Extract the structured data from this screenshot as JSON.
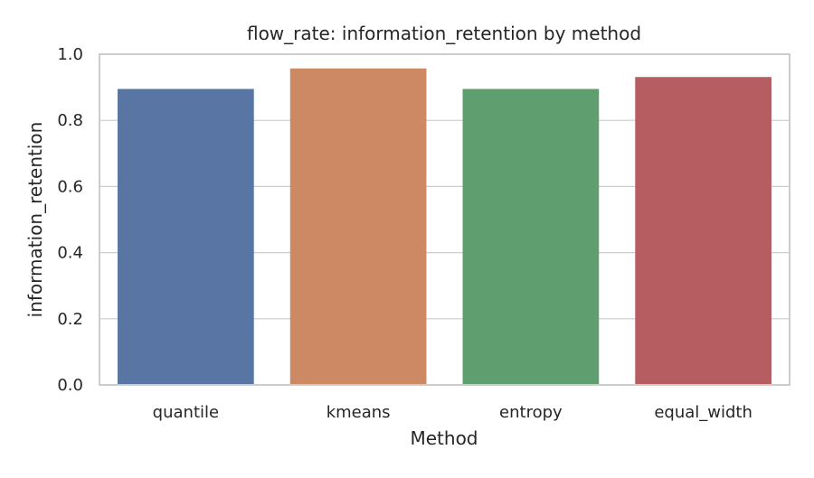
{
  "chart_data": {
    "type": "bar",
    "title": "flow_rate: information_retention by method",
    "xlabel": "Method",
    "ylabel": "information_retention",
    "categories": [
      "quantile",
      "kmeans",
      "entropy",
      "equal_width"
    ],
    "values": [
      0.895,
      0.957,
      0.895,
      0.931
    ],
    "ylim": [
      0,
      1.0
    ],
    "yticks": [
      "0.0",
      "0.2",
      "0.4",
      "0.6",
      "0.8",
      "1.0"
    ],
    "grid": true,
    "colors": [
      "#5975a4",
      "#cc8963",
      "#5f9e6e",
      "#b55d60"
    ]
  },
  "colors": {
    "grid": "#cccccc",
    "frame": "#cccccc",
    "text": "#262626"
  }
}
